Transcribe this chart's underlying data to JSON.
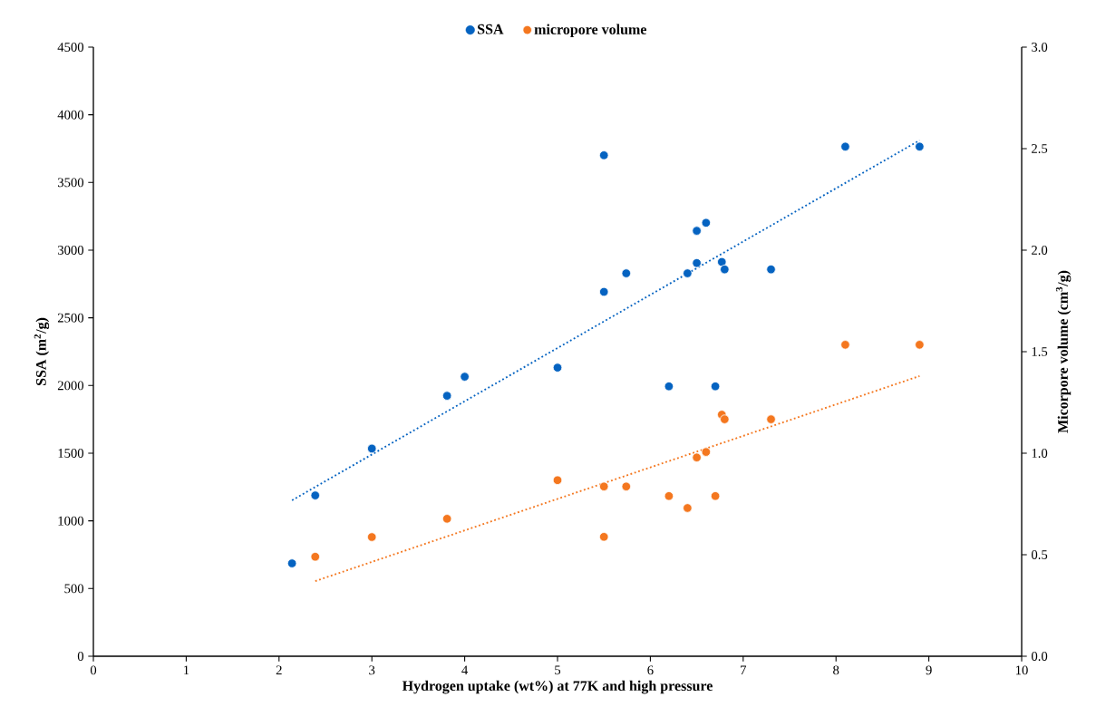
{
  "chart_data": {
    "type": "scatter",
    "xlabel": "Hydrogen uptake (wt%) at 77K and high pressure",
    "ylabel": "SSA (m$^{2}$/g)",
    "y2label": "Micorpore volume (cm$^{3}$/g)",
    "xlim": [
      0,
      10
    ],
    "xticks": [
      0,
      1,
      2,
      3,
      4,
      5,
      6,
      7,
      8,
      9,
      10
    ],
    "ylim": [
      0,
      4500
    ],
    "yticks": [
      0,
      500,
      1000,
      1500,
      2000,
      2500,
      3000,
      3500,
      4000,
      4500
    ],
    "y2lim": [
      0,
      3
    ],
    "y2ticks": [
      {
        "value": 0,
        "label": "0.0"
      },
      {
        "value": 0.5,
        "label": "0.5"
      },
      {
        "value": 1,
        "label": "1.0"
      },
      {
        "value": 1.5,
        "label": "1.5"
      },
      {
        "value": 2,
        "label": "2.0"
      },
      {
        "value": 2.5,
        "label": "2.5"
      },
      {
        "value": 3,
        "label": "3.0"
      }
    ],
    "legend": "top",
    "series": [
      {
        "name": "SSA",
        "color": "#0563c1",
        "marker": "circle",
        "x": [
          2.14,
          2.39,
          3.0,
          3.81,
          4.0,
          5.0,
          5.5,
          5.5,
          5.74,
          6.2,
          6.4,
          6.5,
          6.5,
          6.6,
          6.7,
          6.77,
          6.8,
          7.3,
          8.1,
          8.9
        ],
        "values": [
          686,
          1188,
          1534,
          1924,
          2065,
          2132,
          3701,
          2692,
          2829,
          1994,
          2829,
          3143,
          2905,
          3202,
          1994,
          2913,
          2858,
          2858,
          3765,
          3765
        ]
      },
      {
        "name": "micropore volume",
        "color": "#f4771f",
        "marker": "circle",
        "axis": "y2",
        "x": [
          2.39,
          3.0,
          3.81,
          5.0,
          5.5,
          5.5,
          5.74,
          6.2,
          6.4,
          6.5,
          6.6,
          6.7,
          6.77,
          6.8,
          7.3,
          8.1,
          8.9
        ],
        "values": [
          0.49,
          0.587,
          0.677,
          0.867,
          0.836,
          0.588,
          0.836,
          0.789,
          0.73,
          0.979,
          1.006,
          0.789,
          1.19,
          1.167,
          1.167,
          1.534,
          1.534
        ]
      },
      {
        "type": "line",
        "color": "#0563c1",
        "line_style": "dotted",
        "marker": "none",
        "x": [
          2.14,
          8.9
        ],
        "values": [
          1152,
          3811
        ]
      },
      {
        "type": "line",
        "color": "#f4771f",
        "line_style": "dotted",
        "marker": "none",
        "axis": "y2",
        "x": [
          2.39,
          8.9
        ],
        "values": [
          0.37,
          1.38
        ]
      }
    ]
  }
}
